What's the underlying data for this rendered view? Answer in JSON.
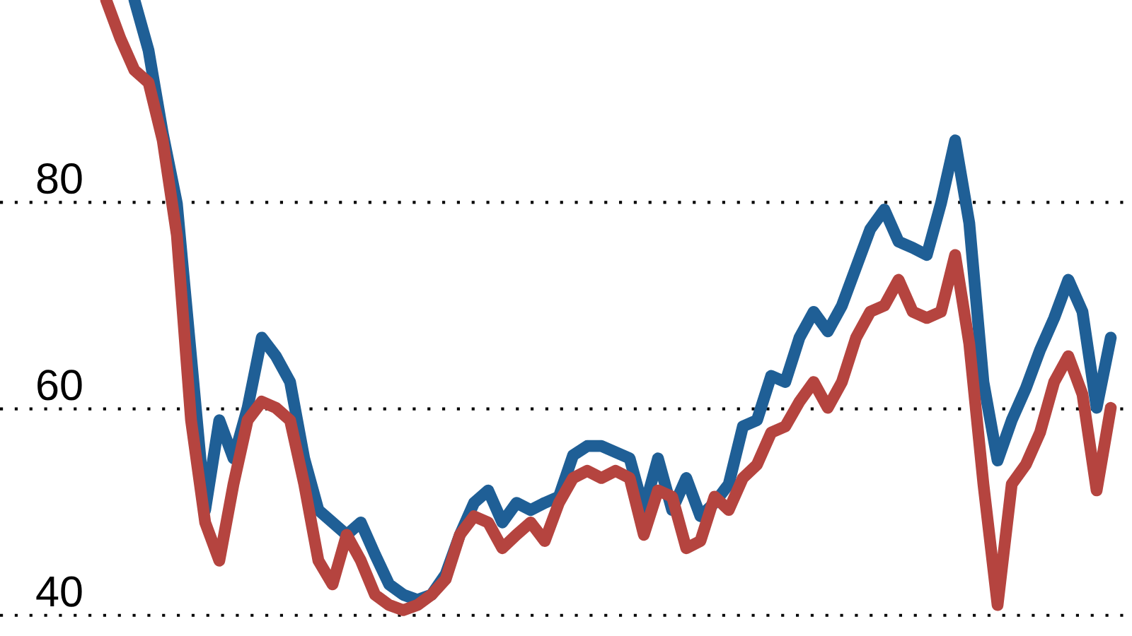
{
  "chart_data": {
    "type": "line",
    "categories": [
      null,
      null,
      null,
      null,
      null,
      null,
      null,
      null,
      null,
      null,
      null,
      null,
      null,
      null,
      null,
      null,
      null,
      null,
      null,
      null,
      null,
      null,
      null,
      null,
      null,
      null,
      null,
      null,
      null,
      null,
      null,
      null,
      null,
      null,
      null,
      null,
      null,
      null,
      null,
      null,
      null,
      null,
      null,
      null,
      null,
      null,
      null,
      null,
      null,
      null,
      null,
      null,
      null,
      null,
      null,
      null,
      null,
      null,
      null,
      null,
      null,
      null,
      null,
      null,
      null,
      null,
      null,
      null,
      null,
      null,
      null,
      null
    ],
    "series": [
      {
        "color": "#1f5f96",
        "values": [
          null,
          null,
          99.6,
          94.7,
          86.7,
          79.9,
          65.1,
          50.2,
          58.9,
          55.2,
          60.1,
          66.9,
          65.1,
          62.6,
          55.2,
          50.2,
          49.0,
          47.8,
          49.0,
          45.9,
          43.0,
          42.0,
          41.5,
          42.0,
          44.0,
          47.8,
          50.9,
          52.1,
          49.0,
          50.9,
          50.2,
          50.9,
          51.5,
          55.5,
          56.4,
          56.4,
          55.8,
          55.2,
          50.2,
          55.2,
          50.2,
          53.3,
          49.6,
          50.9,
          52.7,
          58.3,
          58.9,
          63.2,
          62.6,
          66.9,
          69.4,
          67.5,
          70.0,
          73.7,
          77.4,
          79.3,
          76.2,
          75.6,
          74.9,
          79.9,
          86.0,
          78.0,
          62.6,
          55.0,
          58.9,
          62.0,
          65.7,
          68.8,
          72.5,
          69.4,
          60.1,
          66.9
        ]
      },
      {
        "color": "#b5443f",
        "values": [
          99.6,
          95.9,
          92.8,
          91.6,
          86.0,
          76.8,
          58.9,
          49.0,
          45.3,
          52.7,
          58.9,
          60.7,
          60.1,
          58.9,
          52.7,
          45.3,
          43.0,
          47.8,
          45.3,
          42.0,
          41.0,
          40.5,
          41.0,
          42.0,
          43.5,
          47.8,
          49.6,
          49.0,
          46.5,
          47.8,
          49.0,
          47.2,
          50.9,
          53.3,
          54.0,
          53.3,
          54.0,
          53.3,
          47.8,
          52.1,
          51.5,
          46.5,
          47.2,
          51.5,
          50.2,
          53.3,
          54.6,
          57.7,
          58.3,
          60.7,
          62.6,
          60.1,
          62.6,
          66.9,
          69.4,
          70.0,
          72.5,
          69.4,
          68.8,
          69.4,
          74.9,
          66.3,
          52.7,
          41.0,
          52.7,
          54.6,
          57.7,
          62.6,
          65.1,
          61.4,
          52.1,
          60.1
        ]
      }
    ],
    "ylim": [
      38,
      99.6
    ],
    "yticks": [
      40,
      60,
      80
    ],
    "grid": "y",
    "line_style": "solid",
    "tick_labels": "y"
  }
}
